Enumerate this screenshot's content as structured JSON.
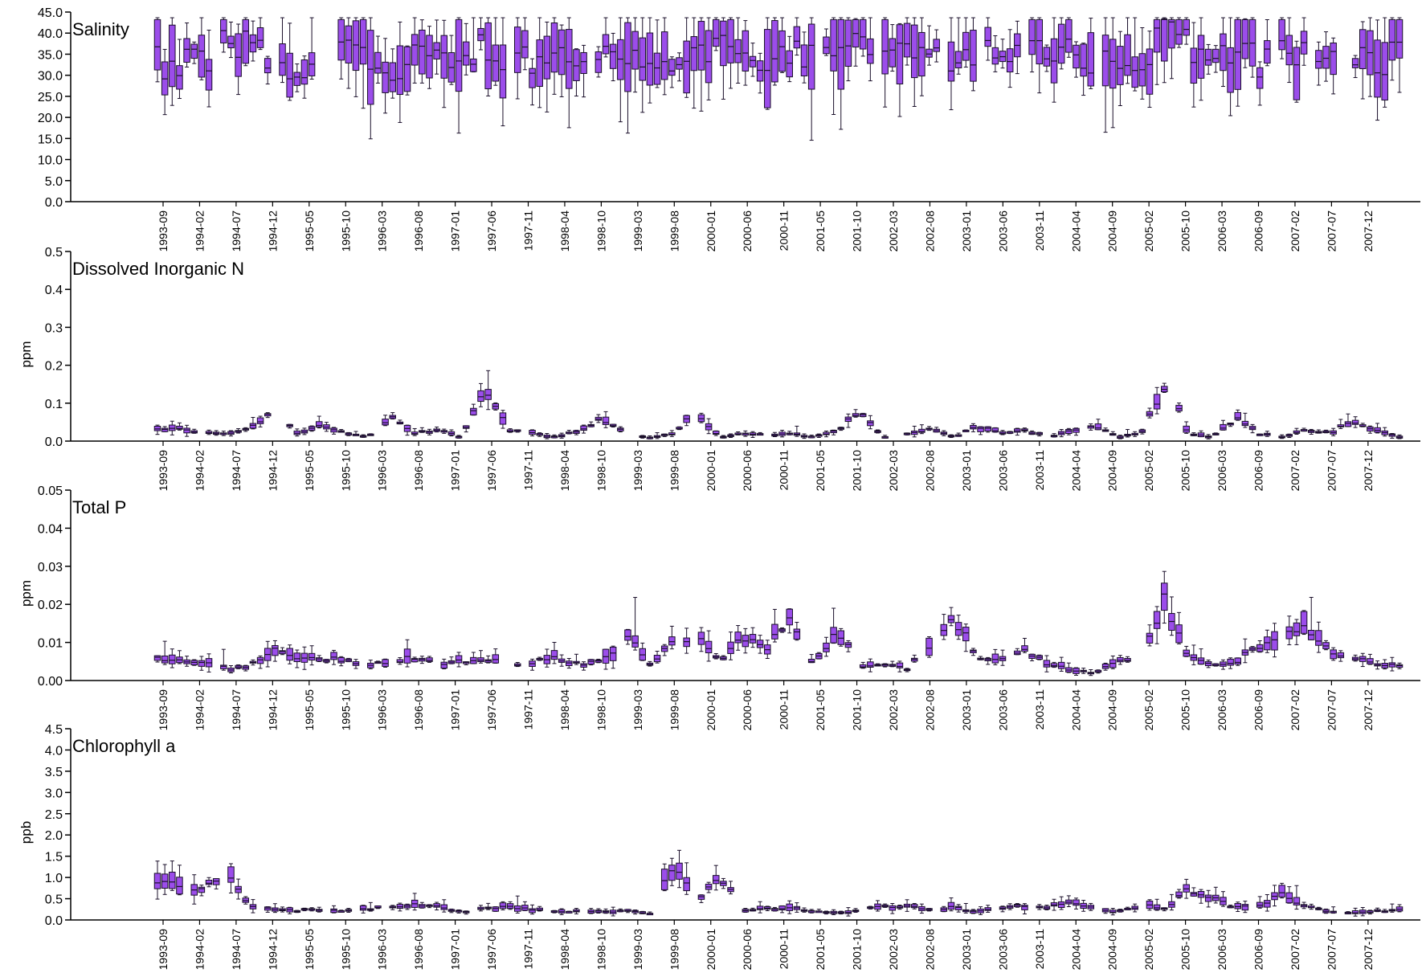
{
  "dates": [
    "1993-09",
    "1994-02",
    "1994-07",
    "1994-12",
    "1995-05",
    "1995-10",
    "1996-03",
    "1996-08",
    "1997-01",
    "1997-06",
    "1997-11",
    "1998-04",
    "1998-10",
    "1999-03",
    "1999-08",
    "2000-01",
    "2000-06",
    "2000-11",
    "2001-05",
    "2001-10",
    "2002-03",
    "2002-08",
    "2003-01",
    "2003-06",
    "2003-11",
    "2004-04",
    "2004-09",
    "2005-02",
    "2005-10",
    "2006-03",
    "2006-09",
    "2007-02",
    "2007-07",
    "2007-12"
  ],
  "colors": {
    "box_fill": "#9b4dea",
    "box_stroke": "#1a0f2a",
    "axis": "#000000"
  },
  "chart_data": [
    {
      "type": "box",
      "title": "Salinity",
      "ylabel": "",
      "ylim": [
        0,
        45
      ],
      "yticks": [
        0,
        5,
        10,
        15,
        20,
        25,
        30,
        35,
        40,
        45
      ],
      "ytick_labels": [
        "0.0",
        "5.0",
        "10.0",
        "15.0",
        "20.0",
        "25.0",
        "30.0",
        "35.0",
        "40.0",
        "45.0"
      ],
      "profile": [
        32.8,
        33.5,
        35.0,
        36.5,
        37.2,
        33.5,
        31.0,
        34.5,
        36.2,
        32.0,
        30.5,
        34.0,
        37.5,
        33.0,
        35.8,
        33.5,
        34.8,
        37.0,
        31.5,
        33.5,
        35.5,
        32.5,
        33.0,
        36.0,
        38.5,
        32.0,
        35.0,
        37.5,
        34.0,
        36.5,
        37.0,
        32.5,
        34.5,
        37.5,
        34.0,
        37.0,
        31.5,
        35.5,
        34.0,
        36.5,
        33.5,
        31.0,
        34.0,
        39.0,
        36.5,
        33.0,
        37.5,
        32.5,
        38.0,
        36.0,
        33.0,
        37.0,
        32.5,
        35.5
      ]
    },
    {
      "type": "box",
      "title": "Dissolved Inorganic N",
      "ylabel": "ppm",
      "ylim": [
        0,
        0.5
      ],
      "yticks": [
        0,
        0.1,
        0.2,
        0.3,
        0.4,
        0.5
      ],
      "ytick_labels": [
        "0.0",
        "0.1",
        "0.2",
        "0.3",
        "0.4",
        "0.5"
      ],
      "profile": [
        0.03,
        0.03,
        0.025,
        0.02,
        0.035,
        0.09,
        0.02,
        0.04,
        0.02,
        0.01,
        0.07,
        0.02,
        0.03,
        0.01,
        0.15,
        0.03,
        0.02,
        0.01,
        0.03,
        0.06,
        0.02,
        0.01,
        0.02,
        0.08,
        0.01,
        0.02,
        0.015,
        0.02,
        0.01,
        0.03,
        0.08,
        0.01,
        0.02,
        0.03,
        0.01,
        0.04,
        0.02,
        0.03,
        0.01,
        0.03,
        0.04,
        0.01,
        0.02,
        0.16,
        0.02,
        0.01,
        0.06,
        0.02,
        0.01,
        0.03,
        0.02,
        0.05,
        0.03,
        0.01
      ]
    },
    {
      "type": "box",
      "title": "Total P",
      "ylabel": "ppm",
      "ylim": [
        0,
        0.05
      ],
      "yticks": [
        0,
        0.01,
        0.02,
        0.03,
        0.04,
        0.05
      ],
      "ytick_labels": [
        "0.00",
        "0.01",
        "0.02",
        "0.03",
        "0.04",
        "0.05"
      ],
      "profile": [
        0.006,
        0.005,
        0.005,
        0.003,
        0.004,
        0.008,
        0.005,
        0.006,
        0.005,
        0.004,
        0.005,
        0.006,
        0.004,
        0.005,
        0.006,
        0.004,
        0.005,
        0.006,
        0.004,
        0.005,
        0.012,
        0.004,
        0.011,
        0.012,
        0.005,
        0.012,
        0.009,
        0.015,
        0.004,
        0.013,
        0.004,
        0.004,
        0.003,
        0.01,
        0.017,
        0.006,
        0.005,
        0.008,
        0.004,
        0.003,
        0.002,
        0.005,
        0.005,
        0.022,
        0.006,
        0.004,
        0.005,
        0.009,
        0.012,
        0.015,
        0.007,
        0.006,
        0.004,
        0.004
      ]
    },
    {
      "type": "box",
      "title": "Chlorophyll a",
      "ylabel": "ppb",
      "ylim": [
        0,
        4.5
      ],
      "yticks": [
        0,
        0.5,
        1,
        1.5,
        2,
        2.5,
        3,
        3.5,
        4,
        4.5
      ],
      "ytick_labels": [
        "0.0",
        "0.5",
        "1.0",
        "1.5",
        "2.0",
        "2.5",
        "3.0",
        "3.5",
        "4.0",
        "4.5"
      ],
      "profile": [
        0.9,
        0.75,
        0.85,
        1.0,
        0.3,
        0.25,
        0.22,
        0.25,
        0.2,
        0.25,
        0.3,
        0.4,
        0.3,
        0.2,
        0.25,
        0.3,
        0.25,
        0.2,
        0.2,
        0.2,
        0.2,
        0.15,
        1.3,
        0.4,
        1.1,
        0.2,
        0.25,
        0.3,
        0.2,
        0.15,
        0.25,
        0.3,
        0.35,
        0.25,
        0.3,
        0.2,
        0.25,
        0.35,
        0.3,
        0.4,
        0.25,
        0.2,
        0.35,
        0.25,
        0.7,
        0.5,
        0.3,
        0.35,
        0.6,
        0.3,
        0.2,
        0.15,
        0.2,
        0.25
      ]
    }
  ]
}
